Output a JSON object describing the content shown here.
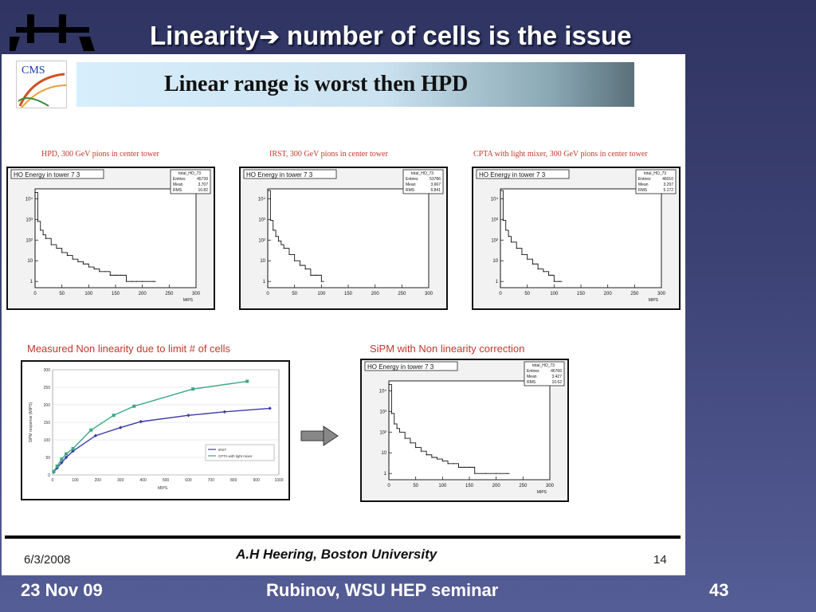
{
  "slide": {
    "title_prefix": "Linearity",
    "title_arrow": "➔",
    "title_suffix": " number of cells is the issue",
    "banner": "Linear range is worst then HPD",
    "cms_label": "CMS"
  },
  "footer": {
    "date": "23 Nov 09",
    "center": "Rubinov, WSU HEP seminar",
    "page": "43"
  },
  "inner_footer": {
    "date": "6/3/2008",
    "author": "A.H Heering, Boston University",
    "page": "14"
  },
  "captions": {
    "response_plot": "Measured Non linearity due to limit # of cells",
    "corrected_plot": "SiPM with Non linearity correction"
  },
  "chart_data": [
    {
      "type": "bar",
      "caption": "HPD, 300 GeV pions in center tower",
      "title": "HO Energy in tower 7 3",
      "stats": {
        "name": "total_HO_73",
        "Entries": "45739",
        "Mean": "3.707",
        "RMS": "10.82"
      },
      "xlabel": "MIPS",
      "xticks": [
        "0",
        "50",
        "100",
        "150",
        "200",
        "250",
        "300"
      ],
      "yticks": [
        "1",
        "10",
        "10²",
        "10³",
        "10⁴"
      ],
      "xlim": [
        0,
        300
      ],
      "ylog": true,
      "ylim": [
        0.5,
        30000
      ],
      "x": [
        0,
        5,
        10,
        15,
        20,
        30,
        40,
        50,
        60,
        70,
        80,
        90,
        100,
        110,
        120,
        130,
        140,
        150,
        160,
        170,
        180,
        190,
        200,
        220
      ],
      "values": [
        20000,
        800,
        300,
        180,
        120,
        60,
        40,
        25,
        18,
        12,
        9,
        7,
        5,
        4,
        3,
        3,
        2,
        2,
        2,
        1,
        1,
        1,
        1,
        1
      ]
    },
    {
      "type": "bar",
      "caption": "IRST, 300 GeV pions in center tower",
      "title": "HO Energy in tower 7 3",
      "stats": {
        "name": "total_HO_73",
        "Entries": "53786",
        "Mean": "3.667",
        "RMS": "6.841"
      },
      "xlabel": "",
      "xticks": [
        "0",
        "50",
        "100",
        "150",
        "200",
        "250",
        "300"
      ],
      "yticks": [
        "1",
        "10",
        "10²",
        "10³",
        "10⁴"
      ],
      "xlim": [
        0,
        300
      ],
      "ylog": true,
      "ylim": [
        0.5,
        30000
      ],
      "x": [
        0,
        5,
        10,
        15,
        20,
        25,
        30,
        40,
        50,
        60,
        70,
        80,
        90,
        100
      ],
      "values": [
        25000,
        900,
        300,
        150,
        90,
        60,
        40,
        20,
        10,
        6,
        4,
        2,
        2,
        1
      ]
    },
    {
      "type": "bar",
      "caption": "CPTA with light mixer, 300 GeV pions in center tower",
      "title": "HO Energy in tower 7 3",
      "stats": {
        "name": "total_HO_73",
        "Entries": "46010",
        "Mean": "3.297",
        "RMS": "5.172"
      },
      "xlabel": "MIPS",
      "xticks": [
        "0",
        "50",
        "100",
        "150",
        "200",
        "250",
        "300"
      ],
      "yticks": [
        "1",
        "10",
        "10²",
        "10³",
        "10⁴"
      ],
      "xlim": [
        0,
        300
      ],
      "ylog": true,
      "ylim": [
        0.5,
        30000
      ],
      "x": [
        0,
        5,
        10,
        15,
        20,
        30,
        40,
        50,
        60,
        70,
        80,
        90,
        100,
        110
      ],
      "values": [
        25000,
        900,
        300,
        150,
        80,
        40,
        20,
        12,
        7,
        4,
        3,
        2,
        1,
        1
      ]
    },
    {
      "type": "line",
      "xlabel": "MIPS",
      "ylabel": "SiPM response (MIPS)",
      "xlim": [
        0,
        1000
      ],
      "ylim": [
        0,
        300
      ],
      "xticks": [
        "0",
        "100",
        "200",
        "300",
        "400",
        "500",
        "600",
        "700",
        "800",
        "900",
        "1000"
      ],
      "yticks": [
        "0",
        "50",
        "100",
        "150",
        "200",
        "250",
        "300"
      ],
      "legend_position": "bottom-right",
      "series": [
        {
          "name": "IRST",
          "color": "#3b3ba8",
          "x": [
            5,
            20,
            40,
            60,
            90,
            190,
            300,
            390,
            600,
            760,
            960
          ],
          "y": [
            8,
            20,
            35,
            50,
            68,
            112,
            135,
            152,
            170,
            180,
            190
          ]
        },
        {
          "name": "CPTA with light mixer",
          "color": "#3aa882",
          "x": [
            5,
            20,
            40,
            60,
            90,
            170,
            270,
            360,
            620,
            860
          ],
          "y": [
            10,
            25,
            45,
            60,
            75,
            128,
            170,
            196,
            245,
            267
          ]
        }
      ]
    },
    {
      "type": "bar",
      "caption": "SiPM with Non linearity correction",
      "title": "HO Energy in tower 7 3",
      "stats": {
        "name": "total_HO_73",
        "Entries": "46766",
        "Mean": "3.427",
        "RMS": "10.62"
      },
      "xlabel": "MIPS",
      "xticks": [
        "0",
        "50",
        "100",
        "150",
        "200",
        "250",
        "300"
      ],
      "yticks": [
        "1",
        "10",
        "10²",
        "10³",
        "10⁴"
      ],
      "xlim": [
        0,
        300
      ],
      "ylog": true,
      "ylim": [
        0.5,
        30000
      ],
      "x": [
        0,
        5,
        10,
        15,
        20,
        30,
        40,
        50,
        60,
        70,
        80,
        90,
        100,
        110,
        120,
        130,
        140,
        150,
        160,
        180,
        200,
        220
      ],
      "values": [
        20000,
        800,
        250,
        150,
        100,
        50,
        30,
        18,
        12,
        8,
        6,
        5,
        4,
        3,
        3,
        2,
        2,
        2,
        1,
        1,
        1,
        1
      ]
    }
  ]
}
